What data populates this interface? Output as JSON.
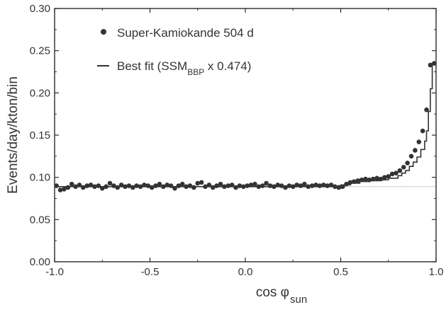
{
  "chart_data": {
    "type": "scatter",
    "xlabel": "cos φ",
    "xlabel_sub": "sun",
    "ylabel": "Events/day/kton/bin",
    "xlim": [
      -1.0,
      1.0
    ],
    "ylim": [
      0.0,
      0.3
    ],
    "x_ticks": [
      "-1.0",
      "-0.5",
      "0.0",
      "0.5",
      "1.0"
    ],
    "x_tick_values": [
      -1.0,
      -0.5,
      0.0,
      0.5,
      1.0
    ],
    "y_ticks": [
      "0.00",
      "0.05",
      "0.10",
      "0.15",
      "0.20",
      "0.25",
      "0.30"
    ],
    "y_tick_values": [
      0.0,
      0.05,
      0.1,
      0.15,
      0.2,
      0.25,
      0.3
    ],
    "grid": false,
    "legend_position": "top-left",
    "legend": {
      "data_label": "Super-Kamiokande 504 d",
      "fit_label_prefix": "Best fit (SSM",
      "fit_label_sub": "BBP",
      "fit_label_suffix": " x 0.474)"
    },
    "series": [
      {
        "name": "Super-Kamiokande 504 d",
        "kind": "points",
        "x": [
          -0.99,
          -0.97,
          -0.95,
          -0.93,
          -0.91,
          -0.89,
          -0.87,
          -0.85,
          -0.83,
          -0.81,
          -0.79,
          -0.77,
          -0.75,
          -0.73,
          -0.71,
          -0.69,
          -0.67,
          -0.65,
          -0.63,
          -0.61,
          -0.59,
          -0.57,
          -0.55,
          -0.53,
          -0.51,
          -0.49,
          -0.47,
          -0.45,
          -0.43,
          -0.41,
          -0.39,
          -0.37,
          -0.35,
          -0.33,
          -0.31,
          -0.29,
          -0.27,
          -0.25,
          -0.23,
          -0.21,
          -0.19,
          -0.17,
          -0.15,
          -0.13,
          -0.11,
          -0.09,
          -0.07,
          -0.05,
          -0.03,
          -0.01,
          0.01,
          0.03,
          0.05,
          0.07,
          0.09,
          0.11,
          0.13,
          0.15,
          0.17,
          0.19,
          0.21,
          0.23,
          0.25,
          0.27,
          0.29,
          0.31,
          0.33,
          0.35,
          0.37,
          0.39,
          0.41,
          0.43,
          0.45,
          0.47,
          0.49,
          0.51,
          0.53,
          0.55,
          0.57,
          0.59,
          0.61,
          0.63,
          0.65,
          0.67,
          0.69,
          0.71,
          0.73,
          0.75,
          0.77,
          0.79,
          0.81,
          0.83,
          0.85,
          0.87,
          0.89,
          0.91,
          0.93,
          0.95,
          0.97,
          0.99
        ],
        "y": [
          0.09,
          0.085,
          0.086,
          0.088,
          0.092,
          0.089,
          0.091,
          0.088,
          0.09,
          0.091,
          0.089,
          0.09,
          0.087,
          0.089,
          0.093,
          0.09,
          0.088,
          0.091,
          0.089,
          0.09,
          0.088,
          0.09,
          0.089,
          0.091,
          0.09,
          0.088,
          0.09,
          0.092,
          0.089,
          0.091,
          0.09,
          0.087,
          0.09,
          0.092,
          0.089,
          0.09,
          0.088,
          0.093,
          0.094,
          0.089,
          0.091,
          0.088,
          0.09,
          0.092,
          0.089,
          0.09,
          0.091,
          0.088,
          0.09,
          0.089,
          0.09,
          0.091,
          0.092,
          0.089,
          0.09,
          0.093,
          0.09,
          0.089,
          0.091,
          0.09,
          0.088,
          0.09,
          0.089,
          0.091,
          0.09,
          0.092,
          0.089,
          0.09,
          0.091,
          0.09,
          0.091,
          0.09,
          0.091,
          0.089,
          0.088,
          0.089,
          0.092,
          0.094,
          0.095,
          0.096,
          0.097,
          0.098,
          0.097,
          0.098,
          0.099,
          0.098,
          0.1,
          0.101,
          0.104,
          0.105,
          0.108,
          0.112,
          0.117,
          0.125,
          0.132,
          0.142,
          0.155,
          0.18,
          0.233,
          0.235
        ]
      },
      {
        "name": "Best fit (SSMBBP x 0.474)",
        "kind": "step",
        "x": [
          -1.0,
          -0.9,
          -0.8,
          -0.7,
          -0.6,
          -0.5,
          -0.4,
          -0.3,
          -0.2,
          -0.1,
          0.0,
          0.1,
          0.2,
          0.3,
          0.4,
          0.5,
          0.55,
          0.6,
          0.65,
          0.7,
          0.75,
          0.8,
          0.82,
          0.84,
          0.86,
          0.88,
          0.9,
          0.92,
          0.94,
          0.95,
          0.96,
          0.97,
          0.98,
          1.0
        ],
        "y": [
          0.089,
          0.089,
          0.089,
          0.089,
          0.089,
          0.089,
          0.089,
          0.089,
          0.089,
          0.089,
          0.089,
          0.089,
          0.089,
          0.089,
          0.089,
          0.091,
          0.093,
          0.095,
          0.096,
          0.097,
          0.099,
          0.102,
          0.105,
          0.108,
          0.113,
          0.118,
          0.124,
          0.133,
          0.143,
          0.155,
          0.178,
          0.205,
          0.235,
          0.235
        ]
      }
    ],
    "reference_line": {
      "y": 0.089,
      "x_from": 0.5,
      "x_to": 1.0,
      "style": "dotted"
    }
  }
}
